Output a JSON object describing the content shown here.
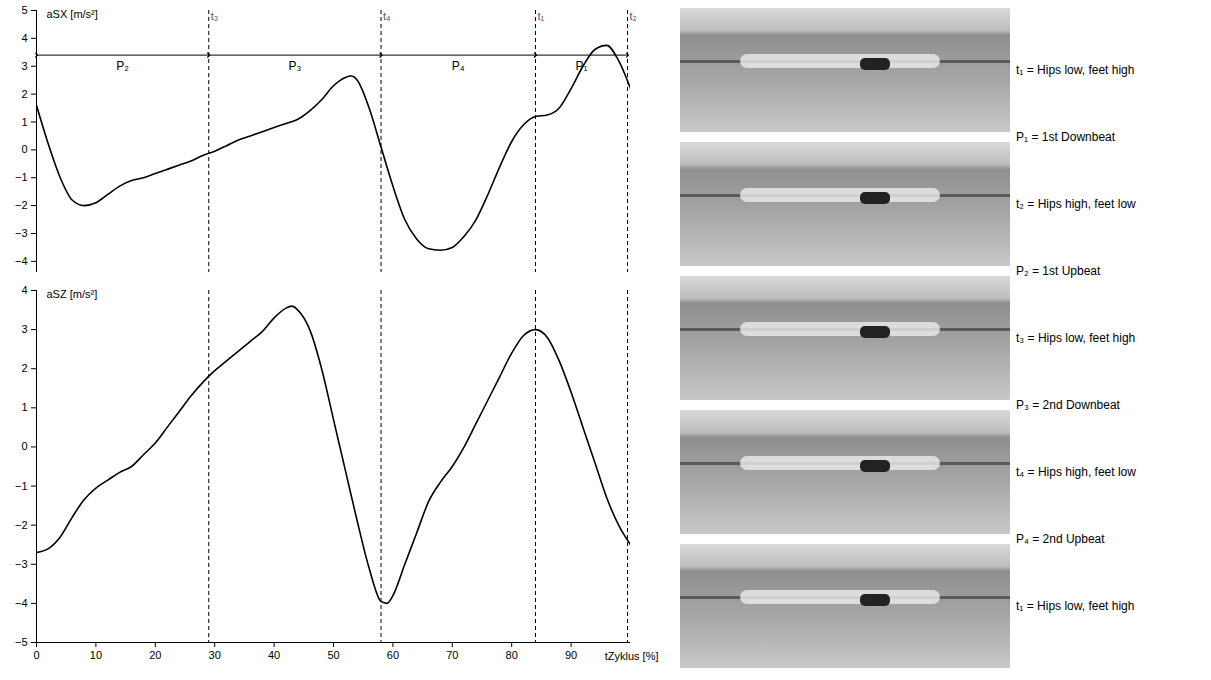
{
  "chart_data": [
    {
      "type": "line",
      "y_label": "aSX [m/s²]",
      "xlim": [
        0,
        100
      ],
      "ylim": [
        -4.4,
        5
      ],
      "yticks": [
        5,
        4,
        3,
        2,
        1,
        0,
        -1,
        -2,
        -3,
        -4
      ],
      "tick_labels": "y",
      "grid": false,
      "color": "#000000",
      "x": [
        0,
        2,
        4,
        6,
        8,
        10,
        12,
        14,
        16,
        18,
        20,
        22,
        24,
        26,
        28,
        30,
        32,
        34,
        36,
        38,
        40,
        42,
        44,
        46,
        48,
        50,
        52,
        53,
        54,
        56,
        58,
        60,
        62,
        64,
        66,
        68,
        70,
        72,
        74,
        76,
        78,
        80,
        82,
        84,
        86,
        88,
        90,
        92,
        94,
        96,
        98,
        100
      ],
      "values": [
        1.6,
        0.2,
        -1.0,
        -1.8,
        -2.0,
        -1.9,
        -1.6,
        -1.3,
        -1.1,
        -1.0,
        -0.85,
        -0.7,
        -0.55,
        -0.4,
        -0.2,
        -0.05,
        0.15,
        0.35,
        0.5,
        0.65,
        0.8,
        0.95,
        1.1,
        1.4,
        1.8,
        2.3,
        2.6,
        2.65,
        2.5,
        1.5,
        0.1,
        -1.3,
        -2.5,
        -3.2,
        -3.55,
        -3.6,
        -3.5,
        -3.1,
        -2.5,
        -1.6,
        -0.6,
        0.3,
        0.9,
        1.2,
        1.25,
        1.5,
        2.2,
        3.0,
        3.6,
        3.75,
        3.2,
        2.2
      ],
      "events": [
        {
          "label": "t₃",
          "x": 29
        },
        {
          "label": "t₄",
          "x": 58
        },
        {
          "label": "t₁",
          "x": 84
        },
        {
          "label": "t₂",
          "x": 99.5
        }
      ],
      "phases": [
        {
          "label": "P₂",
          "start": 0,
          "end": 29,
          "y": 3.4
        },
        {
          "label": "P₃",
          "start": 29,
          "end": 58,
          "y": 3.4
        },
        {
          "label": "P₄",
          "start": 58,
          "end": 84,
          "y": 3.4
        },
        {
          "label": "P₁",
          "start": 84,
          "end": 99.5,
          "y": 3.4
        }
      ]
    },
    {
      "type": "line",
      "y_label": "aSZ [m/s²]",
      "x_label": "tZyklus [%]",
      "xlim": [
        0,
        100
      ],
      "ylim": [
        -5,
        4
      ],
      "xticks": [
        0,
        10,
        20,
        30,
        40,
        50,
        60,
        70,
        80,
        90
      ],
      "yticks": [
        4,
        3,
        2,
        1,
        0,
        -1,
        -2,
        -3,
        -4,
        -5
      ],
      "grid": false,
      "color": "#000000",
      "x": [
        0,
        2,
        4,
        6,
        8,
        10,
        12,
        14,
        16,
        18,
        20,
        22,
        24,
        26,
        28,
        30,
        32,
        34,
        36,
        38,
        40,
        42,
        43,
        44,
        46,
        48,
        50,
        52,
        54,
        56,
        58,
        59,
        60,
        62,
        64,
        66,
        68,
        70,
        72,
        74,
        76,
        78,
        80,
        82,
        84,
        86,
        88,
        90,
        92,
        94,
        96,
        98,
        100
      ],
      "values": [
        -2.7,
        -2.6,
        -2.3,
        -1.8,
        -1.35,
        -1.05,
        -0.85,
        -0.65,
        -0.5,
        -0.2,
        0.1,
        0.5,
        0.9,
        1.3,
        1.65,
        1.95,
        2.2,
        2.45,
        2.7,
        2.95,
        3.3,
        3.55,
        3.6,
        3.5,
        3.0,
        2.0,
        0.7,
        -0.6,
        -1.9,
        -3.1,
        -3.95,
        -4.0,
        -3.8,
        -3.0,
        -2.2,
        -1.4,
        -0.9,
        -0.5,
        0.0,
        0.6,
        1.2,
        1.8,
        2.4,
        2.85,
        3.0,
        2.8,
        2.2,
        1.4,
        0.5,
        -0.4,
        -1.3,
        -2.0,
        -2.5
      ],
      "event_lines": [
        29,
        58,
        84,
        99.5
      ]
    }
  ],
  "photo_panel": {
    "frame_labels": [
      "t₁ = Hips low, feet high",
      "t₂ = Hips high, feet low",
      "t₃ = Hips low, feet high",
      "t₄ = Hips high, feet low",
      "t₁ = Hips low, feet high"
    ],
    "phase_labels": [
      "P₁ = 1st Downbeat",
      "P₂ = 1st Upbeat",
      "P₃ = 2nd Downbeat",
      "P₄ = 2nd Upbeat"
    ]
  }
}
